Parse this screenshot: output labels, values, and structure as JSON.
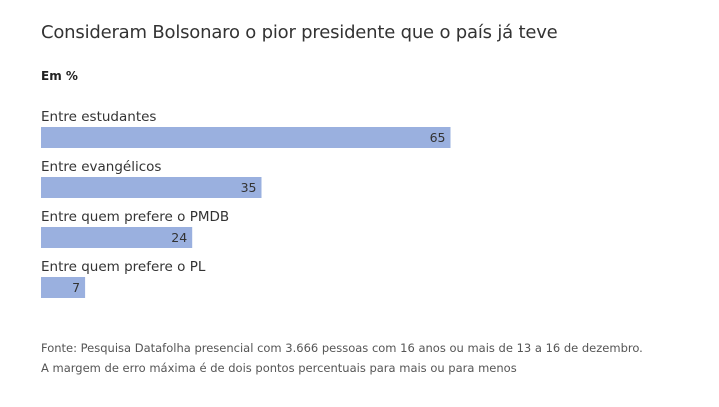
{
  "chart_data": {
    "type": "bar",
    "orientation": "horizontal",
    "title": "Consideram Bolsonaro o pior presidente que o país já teve",
    "subtitle": "Em %",
    "categories": [
      "Entre estudantes",
      "Entre evangélicos",
      "Entre quem prefere o PMDB",
      "Entre quem prefere o PL"
    ],
    "values": [
      65,
      35,
      24,
      7
    ],
    "xlim": [
      0,
      100
    ],
    "grid": false,
    "legend": "none",
    "bar_color": "#9ab0df",
    "source": "Fonte: Pesquisa Datafolha presencial com 3.666 pessoas com 16 anos ou mais de 13 a 16 de dezembro. A margem de erro máxima é de dois pontos percentuais para mais ou para menos"
  }
}
